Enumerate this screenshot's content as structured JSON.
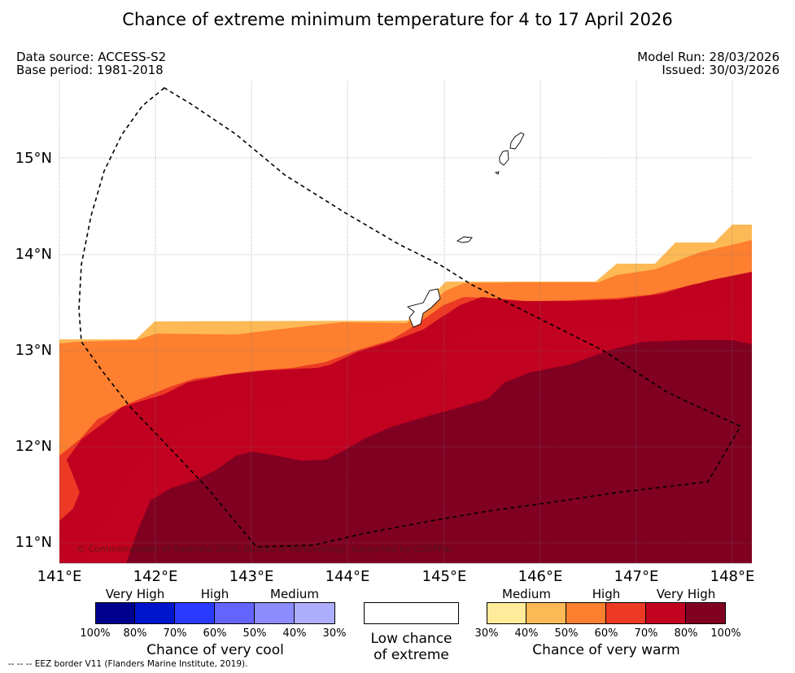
{
  "title": "Chance of extreme minimum temperature for 4 to 17 April 2026",
  "meta": {
    "data_source": "Data source: ACCESS-S2",
    "base_period": "Base period: 1981-2018",
    "model_run": "Model Run: 28/03/2026",
    "issued": "Issued: 30/03/2026"
  },
  "axes": {
    "lat_labels": [
      "15°N",
      "14°N",
      "13°N",
      "12°N",
      "11°N"
    ],
    "lon_labels": [
      "141°E",
      "142°E",
      "143°E",
      "144°E",
      "145°E",
      "146°E",
      "147°E",
      "148°E"
    ]
  },
  "map": {
    "copyright": "© Commonwealth of Australia 2026, Bureau of Meteorology, supported by COSPPac"
  },
  "legend": {
    "cool": {
      "title": "Chance of very cool",
      "categories": [
        "Very High",
        "High",
        "Medium"
      ],
      "ticks": [
        "100%",
        "80%",
        "70%",
        "60%",
        "50%",
        "40%",
        "30%"
      ],
      "colors": [
        "#00008f",
        "#0016cc",
        "#2a3bff",
        "#6464ff",
        "#8c8cff",
        "#aeaeff"
      ]
    },
    "low": {
      "line1": "Low chance",
      "line2": "of extreme"
    },
    "warm": {
      "title": "Chance of very warm",
      "categories": [
        "Medium",
        "High",
        "Very High"
      ],
      "ticks": [
        "30%",
        "40%",
        "50%",
        "60%",
        "70%",
        "80%",
        "100%"
      ],
      "colors": [
        "#ffeb9a",
        "#fdb955",
        "#fd7f2f",
        "#ec3a25",
        "#c10220",
        "#800022"
      ]
    }
  },
  "footer": "--  --  -- EEZ border V11 (Flanders Marine Institute, 2019)."
}
